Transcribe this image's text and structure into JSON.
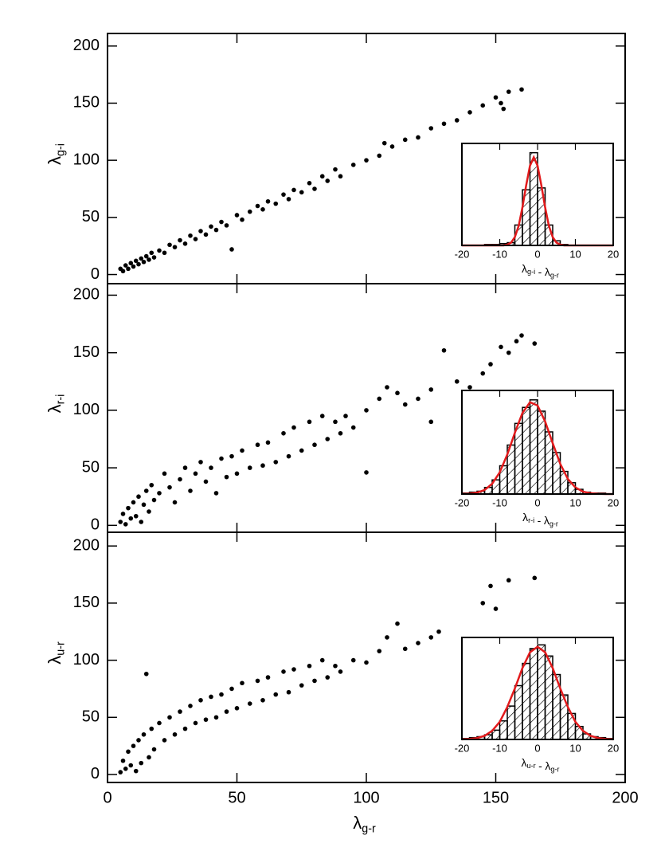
{
  "chart_data": [
    {
      "type": "scatter",
      "xlim": [
        0,
        200
      ],
      "ylim": [
        -8,
        211
      ],
      "yticks": [
        0,
        50,
        100,
        150,
        200
      ],
      "color": "#000000",
      "ylabel": {
        "symbol": "λ",
        "subscript": "g-i"
      },
      "x": [
        5,
        6,
        7,
        8,
        9,
        10,
        11,
        12,
        13,
        14,
        15,
        16,
        17,
        18,
        20,
        22,
        24,
        26,
        28,
        30,
        32,
        34,
        36,
        38,
        40,
        42,
        44,
        46,
        48,
        50,
        52,
        55,
        58,
        60,
        62,
        65,
        68,
        70,
        72,
        75,
        78,
        80,
        83,
        85,
        88,
        90,
        95,
        100,
        105,
        107,
        110,
        115,
        120,
        125,
        130,
        135,
        140,
        145,
        150,
        152,
        155,
        160,
        153
      ],
      "values": [
        5,
        3,
        8,
        5,
        10,
        7,
        12,
        9,
        14,
        11,
        16,
        13,
        19,
        15,
        21,
        19,
        26,
        24,
        30,
        27,
        34,
        31,
        38,
        35,
        42,
        39,
        46,
        43,
        22,
        52,
        48,
        55,
        60,
        57,
        64,
        62,
        70,
        66,
        74,
        72,
        80,
        75,
        86,
        82,
        92,
        86,
        96,
        100,
        104,
        115,
        112,
        118,
        120,
        128,
        132,
        135,
        142,
        148,
        155,
        150,
        160,
        162,
        145
      ]
    },
    {
      "type": "histogram",
      "xlim": [
        -20,
        20
      ],
      "ylim": [
        0,
        110
      ],
      "xticks": [
        -20,
        -10,
        0,
        10,
        20
      ],
      "color": "#000000",
      "xlabel": [
        {
          "symbol": "λ",
          "subscript": "g-i"
        },
        {
          "text": "-"
        },
        {
          "symbol": "λ",
          "subscript": "g-r"
        }
      ],
      "bins": [
        -20,
        -18,
        -16,
        -14,
        -12,
        -10,
        -8,
        -6,
        -4,
        -2,
        0,
        2,
        4,
        6,
        8,
        10,
        12,
        14,
        16,
        18,
        20
      ],
      "counts": [
        0,
        0,
        0,
        1,
        1,
        2,
        3,
        22,
        60,
        100,
        62,
        22,
        5,
        1,
        0,
        0,
        0,
        0,
        0,
        0
      ],
      "fit": {
        "color": "#e31a1c",
        "x": [
          -20,
          -19,
          -18,
          -17,
          -16,
          -15,
          -14,
          -13,
          -12,
          -11,
          -10,
          -9,
          -8,
          -7,
          -6,
          -5,
          -4,
          -3,
          -2,
          -1,
          0,
          1,
          2,
          3,
          4,
          5,
          6,
          7,
          8,
          9,
          10,
          11,
          12,
          13,
          14,
          15,
          16,
          17,
          18,
          19,
          20
        ],
        "values": [
          0,
          0,
          0,
          0,
          0,
          0,
          0,
          0,
          0,
          0,
          0,
          0,
          0.9,
          3,
          9,
          21,
          41,
          65,
          86,
          95,
          86,
          65,
          41,
          21,
          9,
          3,
          0.9,
          0,
          0,
          0,
          0,
          0,
          0,
          0,
          0,
          0,
          0,
          0,
          0,
          0,
          0
        ]
      }
    },
    {
      "type": "scatter",
      "xlim": [
        0,
        200
      ],
      "ylim": [
        -6,
        210
      ],
      "yticks": [
        0,
        50,
        100,
        150,
        200
      ],
      "color": "#000000",
      "ylabel": {
        "symbol": "λ",
        "subscript": "r-i"
      },
      "x": [
        5,
        6,
        7,
        8,
        9,
        10,
        11,
        12,
        13,
        14,
        15,
        16,
        17,
        18,
        20,
        22,
        24,
        26,
        28,
        30,
        32,
        34,
        36,
        38,
        40,
        42,
        44,
        46,
        48,
        50,
        52,
        55,
        58,
        60,
        62,
        65,
        68,
        70,
        72,
        75,
        78,
        80,
        83,
        85,
        88,
        90,
        92,
        95,
        100,
        100,
        105,
        108,
        112,
        115,
        120,
        125,
        130,
        135,
        140,
        145,
        148,
        152,
        155,
        158,
        160,
        165,
        125
      ],
      "values": [
        3,
        10,
        1,
        15,
        6,
        20,
        8,
        25,
        3,
        18,
        30,
        12,
        35,
        22,
        28,
        45,
        33,
        20,
        40,
        50,
        30,
        45,
        55,
        38,
        50,
        28,
        58,
        42,
        60,
        45,
        65,
        50,
        70,
        52,
        72,
        55,
        80,
        60,
        85,
        65,
        90,
        70,
        95,
        75,
        90,
        80,
        95,
        85,
        100,
        46,
        110,
        120,
        115,
        105,
        110,
        118,
        152,
        125,
        120,
        132,
        140,
        155,
        150,
        160,
        165,
        158,
        90
      ]
    },
    {
      "type": "histogram",
      "xlim": [
        -20,
        20
      ],
      "ylim": [
        0,
        110
      ],
      "xticks": [
        -20,
        -10,
        0,
        10,
        20
      ],
      "color": "#000000",
      "xlabel": [
        {
          "symbol": "λ",
          "subscript": "r-i"
        },
        {
          "text": "-"
        },
        {
          "symbol": "λ",
          "subscript": "g-r"
        }
      ],
      "bins": [
        -20,
        -18,
        -16,
        -14,
        -12,
        -10,
        -8,
        -6,
        -4,
        -2,
        0,
        2,
        4,
        6,
        8,
        10,
        12,
        14,
        16,
        18,
        20
      ],
      "counts": [
        1,
        2,
        3,
        7,
        15,
        30,
        52,
        75,
        92,
        100,
        88,
        66,
        44,
        24,
        12,
        5,
        2,
        1,
        1,
        0
      ],
      "fit": {
        "color": "#e31a1c",
        "x": [
          -20,
          -18,
          -16,
          -14,
          -12,
          -10,
          -8,
          -6,
          -4,
          -2,
          0,
          2,
          4,
          6,
          8,
          10,
          12,
          14,
          16,
          18,
          20
        ],
        "values": [
          0.1,
          0.4,
          1.5,
          4.3,
          10.9,
          23,
          42,
          65,
          86,
          97.5,
          94,
          77,
          54,
          32,
          16,
          7,
          2.6,
          0.8,
          0.2,
          0.05,
          0
        ]
      }
    },
    {
      "type": "scatter",
      "xlim": [
        0,
        200
      ],
      "ylim": [
        -7,
        212
      ],
      "yticks": [
        0,
        50,
        100,
        150,
        200
      ],
      "xticks": [
        0,
        50,
        100,
        150,
        200
      ],
      "color": "#000000",
      "ylabel": {
        "symbol": "λ",
        "subscript": "u-r"
      },
      "xlabel": {
        "symbol": "λ",
        "subscript": "g-r"
      },
      "x": [
        5,
        6,
        7,
        8,
        9,
        10,
        11,
        12,
        13,
        14,
        15,
        16,
        17,
        18,
        20,
        22,
        24,
        26,
        28,
        30,
        32,
        34,
        36,
        38,
        40,
        42,
        44,
        46,
        48,
        50,
        52,
        55,
        58,
        60,
        62,
        65,
        68,
        70,
        72,
        75,
        78,
        80,
        83,
        85,
        88,
        90,
        95,
        100,
        105,
        108,
        112,
        115,
        120,
        125,
        128,
        145,
        148,
        150,
        155,
        165
      ],
      "values": [
        2,
        12,
        5,
        20,
        8,
        25,
        3,
        30,
        10,
        35,
        88,
        15,
        40,
        22,
        45,
        30,
        50,
        35,
        55,
        40,
        60,
        45,
        65,
        48,
        68,
        50,
        70,
        55,
        75,
        58,
        80,
        62,
        82,
        65,
        85,
        70,
        90,
        72,
        92,
        78,
        95,
        82,
        100,
        85,
        95,
        90,
        100,
        98,
        108,
        120,
        132,
        110,
        115,
        120,
        125,
        150,
        165,
        145,
        170,
        172
      ]
    },
    {
      "type": "histogram",
      "xlim": [
        -20,
        20
      ],
      "ylim": [
        0,
        110
      ],
      "xticks": [
        -20,
        -10,
        0,
        10,
        20
      ],
      "color": "#000000",
      "xlabel": [
        {
          "symbol": "λ",
          "subscript": "u-r"
        },
        {
          "text": "-"
        },
        {
          "symbol": "λ",
          "subscript": "g-r"
        }
      ],
      "bins": [
        -20,
        -18,
        -16,
        -14,
        -12,
        -10,
        -8,
        -6,
        -4,
        -2,
        0,
        2,
        4,
        6,
        8,
        10,
        12,
        14,
        16,
        18,
        20
      ],
      "counts": [
        1,
        2,
        3,
        5,
        10,
        20,
        36,
        58,
        82,
        98,
        102,
        90,
        70,
        48,
        28,
        14,
        6,
        3,
        2,
        1
      ],
      "fit": {
        "color": "#e31a1c",
        "x": [
          -20,
          -18,
          -16,
          -14,
          -12,
          -10,
          -8,
          -6,
          -4,
          -2,
          0,
          2,
          4,
          6,
          8,
          10,
          12,
          14,
          16,
          18,
          20
        ],
        "values": [
          0.1,
          0.5,
          1.5,
          3.9,
          9.3,
          19,
          35,
          55,
          77,
          94,
          100,
          94,
          77,
          55,
          35,
          19,
          9.3,
          3.9,
          1.5,
          0.5,
          0.1
        ]
      }
    }
  ]
}
